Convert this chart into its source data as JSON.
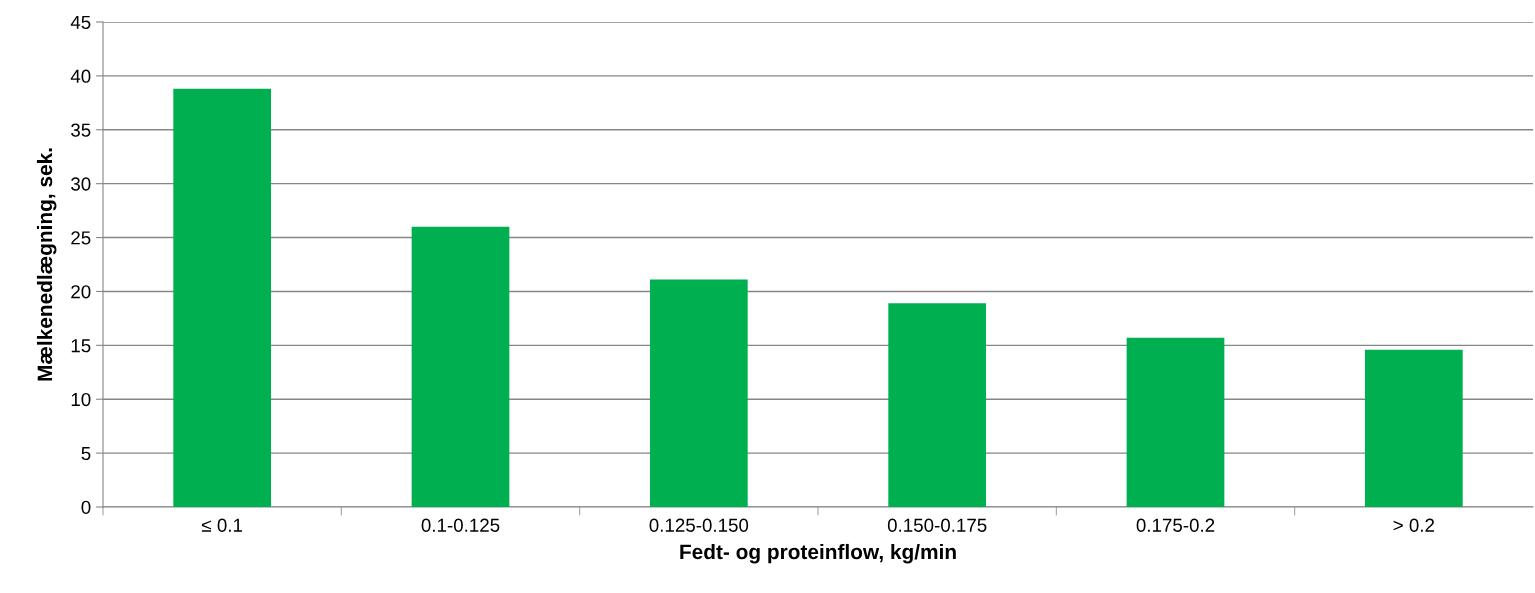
{
  "chart_data": {
    "type": "bar",
    "xlabel": "Fedt- og proteinflow, kg/min",
    "ylabel": "Mælkenedlægning, sek.",
    "categories": [
      "≤ 0.1",
      "0.1-0.125",
      "0.125-0.150",
      "0.150-0.175",
      "0.175-0.2",
      "> 0.2"
    ],
    "values": [
      38.8,
      26.0,
      21.1,
      18.9,
      15.7,
      14.6
    ],
    "color": "#00b050",
    "ylim": [
      0,
      45
    ],
    "yticks": [
      0,
      5,
      10,
      15,
      20,
      25,
      30,
      35,
      40,
      45
    ],
    "grid": "y"
  }
}
